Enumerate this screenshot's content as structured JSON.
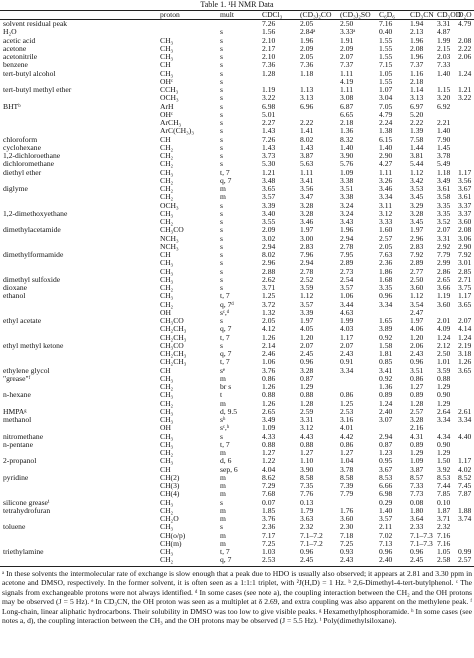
{
  "table": {
    "title": "Table 1. ¹H NMR Data",
    "columns": [
      null,
      "proton",
      "mult",
      "CDCl₃",
      "(CD₃)₂CO",
      "(CD₃)₂SO",
      "C₆D₆",
      "CD₃CN",
      "CD₃OD",
      "D₂O"
    ],
    "rows": [
      [
        "solvent residual peak",
        null,
        null,
        "7.26",
        "2.05",
        "2.50",
        "7.16",
        "1.94",
        "3.31",
        "4.79"
      ],
      [
        "H₂O",
        null,
        "s",
        "1.56",
        "2.84ᵃ",
        "3.33ᵃ",
        "0.40",
        "2.13",
        "4.87",
        null
      ],
      [
        "acetic acid",
        "CH₃",
        "s",
        "2.10",
        "1.96",
        "1.91",
        "1.55",
        "1.96",
        "1.99",
        "2.08"
      ],
      [
        "acetone",
        "CH₃",
        "s",
        "2.17",
        "2.09",
        "2.09",
        "1.55",
        "2.08",
        "2.15",
        "2.22"
      ],
      [
        "acetonitrile",
        "CH₃",
        "s",
        "2.10",
        "2.05",
        "2.07",
        "1.55",
        "1.96",
        "2.03",
        "2.06"
      ],
      [
        "benzene",
        "CH",
        "s",
        "7.36",
        "7.36",
        "7.37",
        "7.15",
        "7.37",
        "7.33",
        null
      ],
      [
        "tert-butyl alcohol",
        "CH₃",
        "s",
        "1.28",
        "1.18",
        "1.11",
        "1.05",
        "1.16",
        "1.40",
        "1.24"
      ],
      [
        null,
        "OHᶜ",
        "s",
        null,
        null,
        "4.19",
        "1.55",
        "2.18",
        null,
        null
      ],
      [
        "tert-butyl methyl ether",
        "CCH₃",
        "s",
        "1.19",
        "1.13",
        "1.11",
        "1.07",
        "1.14",
        "1.15",
        "1.21"
      ],
      [
        null,
        "OCH₃",
        "s",
        "3.22",
        "3.13",
        "3.08",
        "3.04",
        "3.13",
        "3.20",
        "3.22"
      ],
      [
        "BHTᵇ",
        "ArH",
        "s",
        "6.98",
        "6.96",
        "6.87",
        "7.05",
        "6.97",
        "6.92",
        null
      ],
      [
        null,
        "OHᶜ",
        "s",
        "5.01",
        null,
        "6.65",
        "4.79",
        "5.20",
        null,
        null
      ],
      [
        null,
        "ArCH₃",
        "s",
        "2.27",
        "2.22",
        "2.18",
        "2.24",
        "2.22",
        "2.21",
        null
      ],
      [
        null,
        "ArC(CH₃)₃",
        "s",
        "1.43",
        "1.41",
        "1.36",
        "1.38",
        "1.39",
        "1.40",
        null
      ],
      [
        "chloroform",
        "CH",
        "s",
        "7.26",
        "8.02",
        "8.32",
        "6.15",
        "7.58",
        "7.90",
        null
      ],
      [
        "cyclohexane",
        "CH₂",
        "s",
        "1.43",
        "1.43",
        "1.40",
        "1.40",
        "1.44",
        "1.45",
        null
      ],
      [
        "1,2-dichloroethane",
        "CH₂",
        "s",
        "3.73",
        "3.87",
        "3.90",
        "2.90",
        "3.81",
        "3.78",
        null
      ],
      [
        "dichloromethane",
        "CH₂",
        "s",
        "5.30",
        "5.63",
        "5.76",
        "4.27",
        "5.44",
        "5.49",
        null
      ],
      [
        "diethyl ether",
        "CH₃",
        "t, 7",
        "1.21",
        "1.11",
        "1.09",
        "1.11",
        "1.12",
        "1.18",
        "1.17"
      ],
      [
        null,
        "CH₂",
        "q, 7",
        "3.48",
        "3.41",
        "3.38",
        "3.26",
        "3.42",
        "3.49",
        "3.56"
      ],
      [
        "diglyme",
        "CH₂",
        "m",
        "3.65",
        "3.56",
        "3.51",
        "3.46",
        "3.53",
        "3.61",
        "3.67"
      ],
      [
        null,
        "CH₂",
        "m",
        "3.57",
        "3.47",
        "3.38",
        "3.34",
        "3.45",
        "3.58",
        "3.61"
      ],
      [
        null,
        "OCH₃",
        "s",
        "3.39",
        "3.28",
        "3.24",
        "3.11",
        "3.29",
        "3.35",
        "3.37"
      ],
      [
        "1,2-dimethoxyethane",
        "CH₃",
        "s",
        "3.40",
        "3.28",
        "3.24",
        "3.12",
        "3.28",
        "3.35",
        "3.37"
      ],
      [
        null,
        "CH₂",
        "s",
        "3.55",
        "3.46",
        "3.43",
        "3.33",
        "3.45",
        "3.52",
        "3.60"
      ],
      [
        "dimethylacetamide",
        "CH₃CO",
        "s",
        "2.09",
        "1.97",
        "1.96",
        "1.60",
        "1.97",
        "2.07",
        "2.08"
      ],
      [
        null,
        "NCH₃",
        "s",
        "3.02",
        "3.00",
        "2.94",
        "2.57",
        "2.96",
        "3.31",
        "3.06"
      ],
      [
        null,
        "NCH₃",
        "s",
        "2.94",
        "2.83",
        "2.78",
        "2.05",
        "2.83",
        "2.92",
        "2.90"
      ],
      [
        "dimethylformamide",
        "CH",
        "s",
        "8.02",
        "7.96",
        "7.95",
        "7.63",
        "7.92",
        "7.79",
        "7.92"
      ],
      [
        null,
        "CH₃",
        "s",
        "2.96",
        "2.94",
        "2.89",
        "2.36",
        "2.89",
        "2.99",
        "3.01"
      ],
      [
        null,
        "CH₃",
        "s",
        "2.88",
        "2.78",
        "2.73",
        "1.86",
        "2.77",
        "2.86",
        "2.85"
      ],
      [
        "dimethyl sulfoxide",
        "CH₃",
        "s",
        "2.62",
        "2.52",
        "2.54",
        "1.68",
        "2.50",
        "2.65",
        "2.71"
      ],
      [
        "dioxane",
        "CH₂",
        "s",
        "3.71",
        "3.59",
        "3.57",
        "3.35",
        "3.60",
        "3.66",
        "3.75"
      ],
      [
        "ethanol",
        "CH₃",
        "t, 7",
        "1.25",
        "1.12",
        "1.06",
        "0.96",
        "1.12",
        "1.19",
        "1.17"
      ],
      [
        null,
        "CH₂",
        "q, 7ᵈ",
        "3.72",
        "3.57",
        "3.44",
        "3.34",
        "3.54",
        "3.60",
        "3.65"
      ],
      [
        null,
        "OH",
        "sᶜ,ᵈ",
        "1.32",
        "3.39",
        "4.63",
        null,
        "2.47",
        null,
        null
      ],
      [
        "ethyl acetate",
        "CH₃CO",
        "s",
        "2.05",
        "1.97",
        "1.99",
        "1.65",
        "1.97",
        "2.01",
        "2.07"
      ],
      [
        null,
        "CH₂CH₃",
        "q, 7",
        "4.12",
        "4.05",
        "4.03",
        "3.89",
        "4.06",
        "4.09",
        "4.14"
      ],
      [
        null,
        "CH₂CH₃",
        "t, 7",
        "1.26",
        "1.20",
        "1.17",
        "0.92",
        "1.20",
        "1.24",
        "1.24"
      ],
      [
        "ethyl methyl ketone",
        "CH₃CO",
        "s",
        "2.14",
        "2.07",
        "2.07",
        "1.58",
        "2.06",
        "2.12",
        "2.19"
      ],
      [
        null,
        "CH₂CH₃",
        "q, 7",
        "2.46",
        "2.45",
        "2.43",
        "1.81",
        "2.43",
        "2.50",
        "3.18"
      ],
      [
        null,
        "CH₂CH₃",
        "t, 7",
        "1.06",
        "0.96",
        "0.91",
        "0.85",
        "0.96",
        "1.01",
        "1.26"
      ],
      [
        "ethylene glycol",
        "CH",
        "sᵉ",
        "3.76",
        "3.28",
        "3.34",
        "3.41",
        "3.51",
        "3.59",
        "3.65"
      ],
      [
        "\"grease\"ᶠ",
        "CH₃",
        "m",
        "0.86",
        "0.87",
        null,
        "0.92",
        "0.86",
        "0.88",
        null
      ],
      [
        null,
        "CH₂",
        "br s",
        "1.26",
        "1.29",
        null,
        "1.36",
        "1.27",
        "1.29",
        null
      ],
      [
        "n-hexane",
        "CH₃",
        "t",
        "0.88",
        "0.88",
        "0.86",
        "0.89",
        "0.89",
        "0.90",
        null
      ],
      [
        null,
        "CH₂",
        "m",
        "1.26",
        "1.28",
        "1.25",
        "1.24",
        "1.28",
        "1.29",
        null
      ],
      [
        "HMPAᵍ",
        "CH₃",
        "d, 9.5",
        "2.65",
        "2.59",
        "2.53",
        "2.40",
        "2.57",
        "2.64",
        "2.61"
      ],
      [
        "methanol",
        "CH₃",
        "sʰ",
        "3.49",
        "3.31",
        "3.16",
        "3.07",
        "3.28",
        "3.34",
        "3.34"
      ],
      [
        null,
        "OH",
        "sᶜ,ʰ",
        "1.09",
        "3.12",
        "4.01",
        null,
        "2.16",
        null,
        null
      ],
      [
        "nitromethane",
        "CH₃",
        "s",
        "4.33",
        "4.43",
        "4.42",
        "2.94",
        "4.31",
        "4.34",
        "4.40"
      ],
      [
        "n-pentane",
        "CH₃",
        "t, 7",
        "0.88",
        "0.88",
        "0.86",
        "0.87",
        "0.89",
        "0.90",
        null
      ],
      [
        null,
        "CH₂",
        "m",
        "1.27",
        "1.27",
        "1.27",
        "1.23",
        "1.29",
        "1.29",
        null
      ],
      [
        "2-propanol",
        "CH₃",
        "d, 6",
        "1.22",
        "1.10",
        "1.04",
        "0.95",
        "1.09",
        "1.50",
        "1.17"
      ],
      [
        null,
        "CH",
        "sep, 6",
        "4.04",
        "3.90",
        "3.78",
        "3.67",
        "3.87",
        "3.92",
        "4.02"
      ],
      [
        "pyridine",
        "CH(2)",
        "m",
        "8.62",
        "8.58",
        "8.58",
        "8.53",
        "8.57",
        "8.53",
        "8.52"
      ],
      [
        null,
        "CH(3)",
        "m",
        "7.29",
        "7.35",
        "7.39",
        "6.66",
        "7.33",
        "7.44",
        "7.45"
      ],
      [
        null,
        "CH(4)",
        "m",
        "7.68",
        "7.76",
        "7.79",
        "6.98",
        "7.73",
        "7.85",
        "7.87"
      ],
      [
        "silicone greaseⁱ",
        "CH₃",
        "s",
        "0.07",
        "0.13",
        null,
        "0.29",
        "0.08",
        "0.10",
        null
      ],
      [
        "tetrahydrofuran",
        "CH₂",
        "m",
        "1.85",
        "1.79",
        "1.76",
        "1.40",
        "1.80",
        "1.87",
        "1.88"
      ],
      [
        null,
        "CH₂O",
        "m",
        "3.76",
        "3.63",
        "3.60",
        "3.57",
        "3.64",
        "3.71",
        "3.74"
      ],
      [
        "toluene",
        "CH₃",
        "s",
        "2.36",
        "2.32",
        "2.30",
        "2.11",
        "2.33",
        "2.32",
        null
      ],
      [
        null,
        "CH(o/p)",
        "m",
        "7.17",
        "7.1–7.2",
        "7.18",
        "7.02",
        "7.1–7.3",
        "7.16",
        null
      ],
      [
        null,
        "CH(m)",
        "m",
        "7.25",
        "7.1–7.2",
        "7.25",
        "7.13",
        "7.1–7.3",
        "7.16",
        null
      ],
      [
        "triethylamine",
        "CH₃",
        "t, 7",
        "1.03",
        "0.96",
        "0.93",
        "0.96",
        "0.96",
        "1.05",
        "0.99"
      ],
      [
        null,
        "CH₂",
        "q, 7",
        "2.53",
        "2.45",
        "2.43",
        "2.40",
        "2.45",
        "2.58",
        "2.57"
      ]
    ]
  },
  "footnotes": [
    "ᵃ In these solvents the intermolecular rate of exchange is slow enough that a peak due to HDO is usually also observed; it appears at 2.81 and 3.30 ppm in acetone and DMSO, respectively. In the former solvent, it is often seen as a 1:1:1 triplet, with ²J(H,D) = 1 Hz.",
    "ᵇ 2,6-Dimethyl-4-tert-butylphenol.",
    "ᶜ The signals from exchangeable protons were not always identified.",
    "ᵈ In some cases (see note a), the coupling interaction between the CH₂ and the OH protons may be observed (J = 5 Hz).",
    "ᵉ In CD₃CN, the OH proton was seen as a multiplet at δ 2.69, and extra coupling was also apparent on the methylene peak.",
    "ᶠ Long-chain, linear aliphatic hydrocarbons. Their solubility in DMSO was too low to give visible peaks.",
    "ᵍ Hexamethylphosphoramide.",
    "ʰ In some cases (see notes a, d), the coupling interaction between the CH₃ and the OH protons may be observed (J = 5.5 Hz).",
    "ⁱ Poly(dimethylsiloxane)."
  ]
}
